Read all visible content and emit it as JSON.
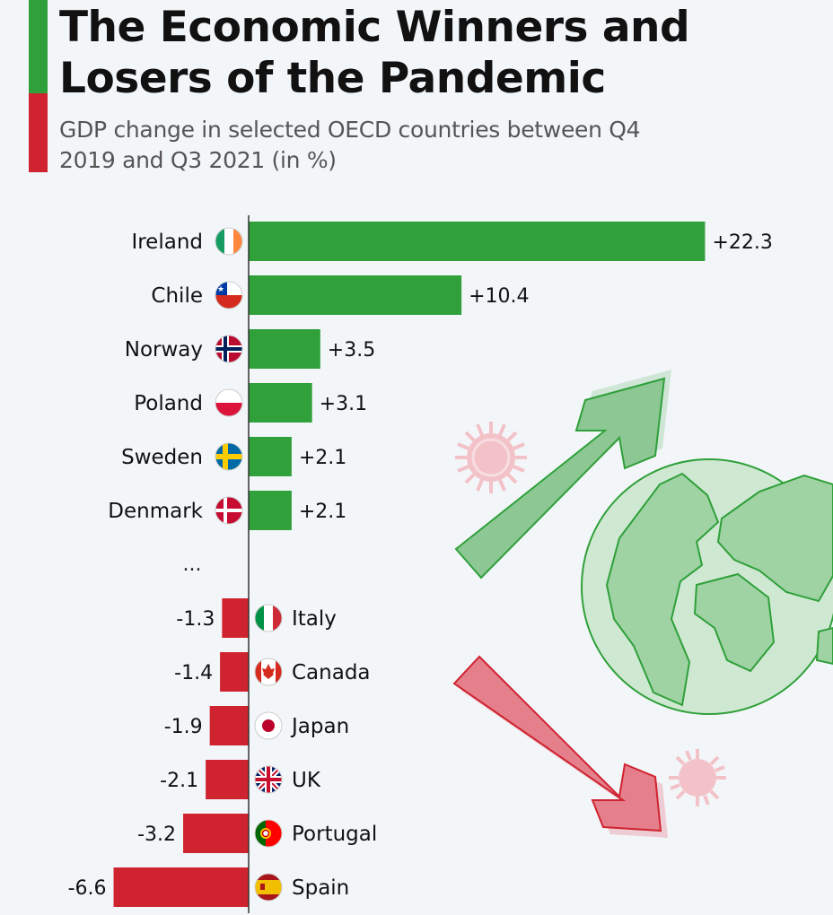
{
  "title": "The Economic Winners and Losers of the Pandemic",
  "subtitle": "GDP change in selected OECD countries between Q4 2019 and Q3 2021 (in %)",
  "colors": {
    "positive": "#2fa03a",
    "negative": "#cf2430"
  },
  "chart_data": {
    "type": "bar",
    "orientation": "horizontal",
    "title": "The Economic Winners and Losers of the Pandemic",
    "subtitle": "GDP change in selected OECD countries between Q4 2019 and Q3 2021 (in %)",
    "categories": [
      "Ireland",
      "Chile",
      "Norway",
      "Poland",
      "Sweden",
      "Denmark",
      "...",
      "Italy",
      "Canada",
      "Japan",
      "UK",
      "Portugal",
      "Spain"
    ],
    "values": [
      22.3,
      10.4,
      3.5,
      3.1,
      2.1,
      2.1,
      null,
      -1.3,
      -1.4,
      -1.9,
      -2.1,
      -3.2,
      -6.6
    ],
    "value_labels": [
      "+22.3",
      "+10.4",
      "+3.5",
      "+3.1",
      "+2.1",
      "+2.1",
      "",
      "-1.3",
      "-1.4",
      "-1.9",
      "-2.1",
      "-3.2",
      "-6.6"
    ],
    "flags": [
      "ireland-flag-icon",
      "chile-flag-icon",
      "norway-flag-icon",
      "poland-flag-icon",
      "sweden-flag-icon",
      "denmark-flag-icon",
      "",
      "italy-flag-icon",
      "canada-flag-icon",
      "japan-flag-icon",
      "uk-flag-icon",
      "portugal-flag-icon",
      "spain-flag-icon"
    ],
    "xlim": [
      -6.6,
      22.3
    ],
    "xlabel": "",
    "ylabel": "",
    "grid": false,
    "legend": "none"
  }
}
